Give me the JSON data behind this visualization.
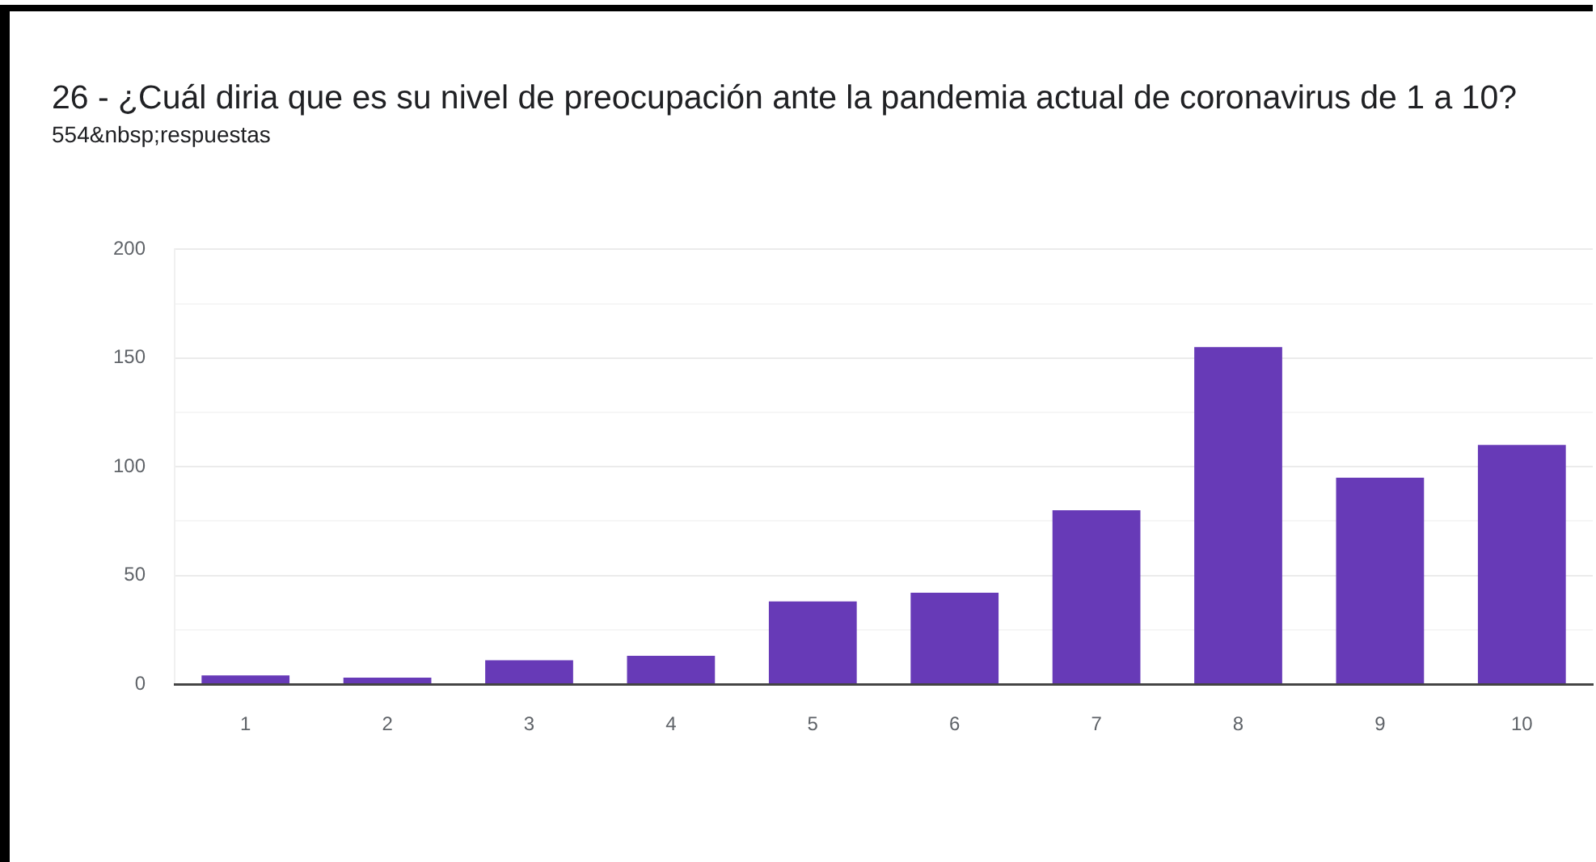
{
  "chart_data": {
    "type": "bar",
    "title": "26 - ¿Cuál diria que es su nivel de preocupación ante la pandemia actual de coronavirus de 1 a 10?",
    "subtitle": "554&nbsp;respuestas",
    "categories": [
      "1",
      "2",
      "3",
      "4",
      "5",
      "6",
      "7",
      "8",
      "9",
      "10"
    ],
    "values": [
      4,
      3,
      11,
      13,
      38,
      42,
      80,
      155,
      95,
      110
    ],
    "color": "#673ab7",
    "ylim": [
      0,
      200
    ],
    "yticks": [
      0,
      {
        "value": 25,
        "label": null
      },
      50,
      {
        "value": 75,
        "label": null
      },
      100,
      {
        "value": 125,
        "label": null
      },
      150,
      {
        "value": 175,
        "label": null
      },
      200
    ],
    "grid": "y"
  }
}
